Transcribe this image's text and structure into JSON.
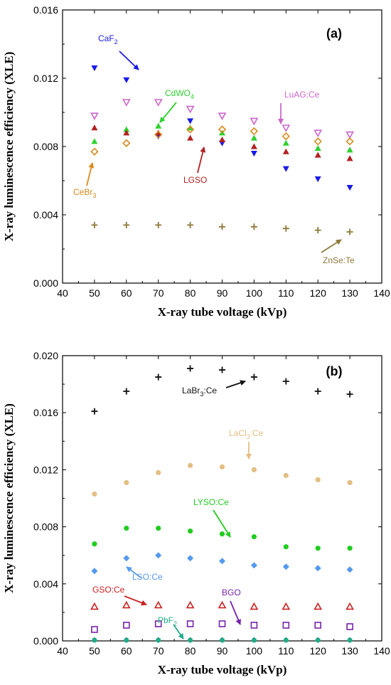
{
  "chart_data": [
    {
      "type": "scatter",
      "panel_label": "(a)",
      "xlabel": "X-ray tube voltage (kVp)",
      "ylabel": "X-ray luminescence efficiency (XLE)",
      "xlim": [
        40,
        140
      ],
      "ylim": [
        0,
        0.016
      ],
      "xticks": [
        "40",
        "50",
        "60",
        "70",
        "80",
        "90",
        "100",
        "110",
        "120",
        "130",
        "140"
      ],
      "yticks": [
        "0.000",
        "0.004",
        "0.008",
        "0.012",
        "0.016"
      ],
      "x": [
        50,
        60,
        70,
        80,
        90,
        100,
        110,
        120,
        130
      ],
      "series": [
        {
          "label": "CaF2",
          "label_main": "CaF",
          "label_sub": "2",
          "marker": "triangle-down-filled",
          "color": "#1a1ae6",
          "values": [
            0.0126,
            0.0119,
            0.0086,
            0.0095,
            0.0082,
            0.0076,
            0.0067,
            0.0061,
            0.0056
          ]
        },
        {
          "label": "CdWO4",
          "label_main": "CdWO",
          "label_sub": "4",
          "marker": "triangle-up-filled",
          "color": "#2fd02f",
          "values": [
            0.0083,
            0.009,
            0.0092,
            0.0091,
            0.0088,
            0.0085,
            0.0082,
            0.0079,
            0.0078
          ]
        },
        {
          "label": "LuAG:Ce",
          "label_main": "LuAG:Ce",
          "label_sub": "",
          "marker": "triangle-down-open",
          "color": "#cc66cc",
          "values": [
            0.0098,
            0.0106,
            0.0106,
            0.0102,
            0.0098,
            0.0095,
            0.0091,
            0.0088,
            0.0087
          ]
        },
        {
          "label": "LGSO",
          "label_main": "LGSO",
          "label_sub": "",
          "marker": "triangle-up-filled",
          "color": "#b22222",
          "values": [
            0.0091,
            0.0088,
            0.0088,
            0.0085,
            0.0084,
            0.008,
            0.0077,
            0.0075,
            0.0073
          ]
        },
        {
          "label": "CeBr3",
          "label_main": "CeBr",
          "label_sub": "3",
          "marker": "diamond-open",
          "color": "#d98a1e",
          "values": [
            0.0077,
            0.0082,
            0.0087,
            0.009,
            0.009,
            0.0089,
            0.0086,
            0.0083,
            0.0083
          ]
        },
        {
          "label": "ZnSe:Te",
          "label_main": "ZnSe:Te",
          "label_sub": "",
          "marker": "plus",
          "color": "#8c7a3a",
          "values": [
            0.0034,
            0.0034,
            0.0034,
            0.0034,
            0.0033,
            0.0033,
            0.0032,
            0.0031,
            0.003
          ]
        }
      ]
    },
    {
      "type": "scatter",
      "panel_label": "(b)",
      "xlabel": "X-ray tube voltage (kVp)",
      "ylabel": "X-ray luminescence efficiency (XLE)",
      "xlim": [
        40,
        140
      ],
      "ylim": [
        0,
        0.02
      ],
      "xticks": [
        "40",
        "50",
        "60",
        "70",
        "80",
        "90",
        "100",
        "110",
        "120",
        "130",
        "140"
      ],
      "yticks": [
        "0.000",
        "0.004",
        "0.008",
        "0.012",
        "0.016",
        "0.020"
      ],
      "x": [
        50,
        60,
        70,
        80,
        90,
        100,
        110,
        120,
        130
      ],
      "series": [
        {
          "label": "LaBr3:Ce",
          "label_main": "LaBr",
          "label_sub": "3",
          "label_tail": ":Ce",
          "marker": "plus",
          "color": "#111111",
          "values": [
            0.0161,
            0.0175,
            0.0185,
            0.0191,
            0.019,
            0.0185,
            0.0182,
            0.0175,
            0.0173
          ]
        },
        {
          "label": "LaCl3:Ce",
          "label_main": "LaCl",
          "label_sub": "3",
          "label_tail": ":Ce",
          "marker": "circle-filled",
          "color": "#e3bf85",
          "values": [
            0.0103,
            0.0111,
            0.0118,
            0.0123,
            0.0122,
            0.012,
            0.0116,
            0.0113,
            0.0111
          ]
        },
        {
          "label": "LYSO:Ce",
          "label_main": "LYSO:Ce",
          "label_sub": "",
          "label_tail": "",
          "marker": "circle-filled",
          "color": "#22cc22",
          "values": [
            0.0068,
            0.0079,
            0.0079,
            0.0077,
            0.0075,
            0.0073,
            0.0066,
            0.0065,
            0.0065
          ]
        },
        {
          "label": "LSO:Ce",
          "label_main": "LSO:Ce",
          "label_sub": "",
          "label_tail": "",
          "marker": "diamond-filled",
          "color": "#5599ee",
          "values": [
            0.0049,
            0.0058,
            0.006,
            0.0058,
            0.0056,
            0.0053,
            0.0052,
            0.0051,
            0.005
          ]
        },
        {
          "label": "GSO:Ce",
          "label_main": "GSO:Ce",
          "label_sub": "",
          "label_tail": "",
          "marker": "triangle-up-open",
          "color": "#cc2222",
          "values": [
            0.0024,
            0.0025,
            0.0025,
            0.0025,
            0.0025,
            0.0024,
            0.0024,
            0.0024,
            0.0024
          ]
        },
        {
          "label": "BGO",
          "label_main": "BGO",
          "label_sub": "",
          "label_tail": "",
          "marker": "square-open",
          "color": "#7722aa",
          "values": [
            0.0008,
            0.0011,
            0.0012,
            0.0012,
            0.0012,
            0.0011,
            0.0011,
            0.0011,
            0.001
          ]
        },
        {
          "label": "PbF2",
          "label_main": "PbF",
          "label_sub": "2",
          "label_tail": "",
          "marker": "circle-filled",
          "color": "#22aa88",
          "values": [
            5e-05,
            5e-05,
            5e-05,
            5e-05,
            5e-05,
            5e-05,
            5e-05,
            5e-05,
            5e-05
          ]
        }
      ]
    }
  ]
}
